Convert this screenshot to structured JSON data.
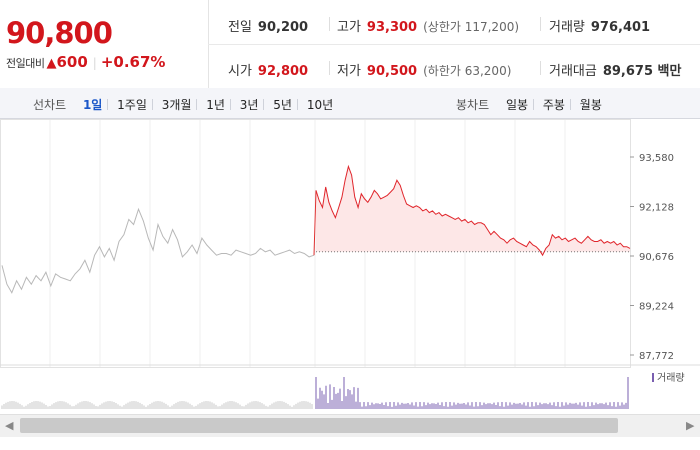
{
  "quote": {
    "price": "90,800",
    "diff_label": "전일대비",
    "diff_arrow": "▲",
    "diff_value": "600",
    "diff_percent": "+0.67%",
    "prev_close": {
      "label": "전일",
      "value": "90,200"
    },
    "high": {
      "label": "고가",
      "value": "93,300",
      "sub": "(상한가 117,200)"
    },
    "volume": {
      "label": "거래량",
      "value": "976,401"
    },
    "open": {
      "label": "시가",
      "value": "92,800"
    },
    "low": {
      "label": "저가",
      "value": "90,500",
      "sub": "(하한가 63,200)"
    },
    "amount": {
      "label": "거래대금",
      "value": "89,675 백만"
    }
  },
  "tabs": {
    "line_label": "선차트",
    "line": [
      "1일",
      "1주일",
      "3개월",
      "1년",
      "3년",
      "5년",
      "10년"
    ],
    "active": "1일",
    "candle_label": "봉차트",
    "candle": [
      "일봉",
      "주봉",
      "월봉"
    ]
  },
  "colors": {
    "up": "#d2161c",
    "active_tab": "#1a56c8",
    "prev_day_line": "#b8b8b8",
    "area_fill": "#fde7e7",
    "volume_today": "#7a5fb0"
  },
  "icons": {
    "scroll_left": "scroll-left-arrow",
    "scroll_right": "scroll-right-arrow"
  },
  "chart_data": {
    "type": "line",
    "yticks": [
      "93,580",
      "92,128",
      "90,676",
      "89,224",
      "87,772"
    ],
    "ylim": [
      87772,
      93580
    ],
    "baseline": 90800,
    "legend": "거래량",
    "series": [
      {
        "values": [
          90400,
          89850,
          89600,
          89950,
          89700,
          90050,
          89850,
          90100,
          89950,
          90200,
          89800,
          90150,
          90050,
          90000,
          89950,
          90150,
          90300,
          90550,
          90200,
          90700,
          90950,
          90650,
          90900,
          90550,
          91100,
          91300,
          91750,
          91600,
          92050,
          91700,
          91200,
          90850,
          91600,
          91250,
          91050,
          91450,
          91150,
          90650,
          90800,
          91000,
          90750,
          91200,
          91000,
          90850,
          90700,
          90750,
          90750,
          90700,
          90850,
          90800,
          90750,
          90700,
          90750,
          90900,
          90800,
          90850,
          90700,
          90750,
          90800,
          90850,
          90750,
          90800,
          90750,
          90650,
          90700
        ]
      },
      {
        "values": [
          92600,
          92300,
          92100,
          92700,
          92250,
          92000,
          91800,
          92100,
          92400,
          92900,
          93300,
          93050,
          92400,
          92100,
          92500,
          92350,
          92250,
          92400,
          92600,
          92500,
          92350,
          92400,
          92450,
          92550,
          92650,
          92900,
          92750,
          92450,
          92200,
          92150,
          92100,
          92150,
          92100,
          92000,
          92050,
          91950,
          92000,
          91900,
          91950,
          91850,
          91900,
          91850,
          91800,
          91750,
          91800,
          91700,
          91750,
          91650,
          91700,
          91600,
          91650,
          91650,
          91600,
          91450,
          91300,
          91400,
          91300,
          91200,
          91150,
          91050,
          91150,
          91200,
          91100,
          91050,
          91000,
          90950,
          91100,
          91000,
          90950,
          90850,
          90700,
          90900,
          91000,
          91300,
          91200,
          91250,
          91150,
          91200,
          91100,
          91150,
          91200,
          91100,
          91050,
          91150,
          91250,
          91150,
          91100,
          91100,
          91150,
          91050,
          91100,
          91050,
          91100,
          91000,
          91050,
          90950,
          90950,
          90900
        ]
      }
    ]
  }
}
